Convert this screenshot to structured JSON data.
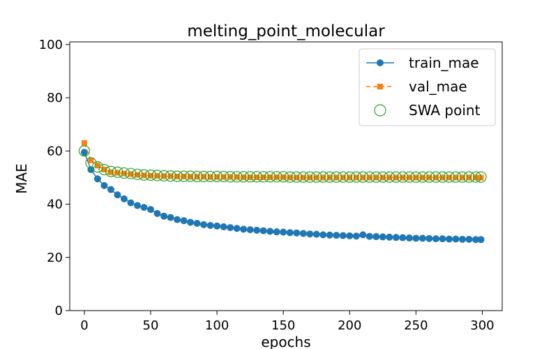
{
  "chart_data": {
    "type": "line",
    "title": "melting_point_molecular",
    "xlabel": "epochs",
    "ylabel": "MAE",
    "xlim": [
      -11,
      315
    ],
    "ylim": [
      0,
      101
    ],
    "xticks": [
      0,
      50,
      100,
      150,
      200,
      250,
      300
    ],
    "yticks": [
      0,
      20,
      40,
      60,
      80,
      100
    ],
    "legend_position": "upper-right",
    "x": [
      0,
      5,
      10,
      15,
      20,
      25,
      30,
      35,
      40,
      45,
      50,
      55,
      60,
      65,
      70,
      75,
      80,
      85,
      90,
      95,
      100,
      105,
      110,
      115,
      120,
      125,
      130,
      135,
      140,
      145,
      150,
      155,
      160,
      165,
      170,
      175,
      180,
      185,
      190,
      195,
      200,
      205,
      210,
      215,
      220,
      225,
      230,
      235,
      240,
      245,
      250,
      255,
      260,
      265,
      270,
      275,
      280,
      285,
      290,
      295,
      299
    ],
    "series": [
      {
        "name": "train_mae",
        "color": "#1f77b4",
        "marker": "circle",
        "line_style": "solid",
        "values": [
          59.5,
          53.0,
          49.5,
          47.0,
          45.5,
          43.5,
          42.0,
          40.5,
          39.5,
          38.8,
          38.0,
          36.5,
          35.5,
          35.0,
          34.2,
          33.8,
          33.2,
          32.8,
          32.3,
          32.0,
          31.8,
          31.5,
          31.2,
          30.9,
          30.6,
          30.4,
          30.2,
          30.0,
          29.8,
          29.6,
          29.5,
          29.3,
          29.2,
          29.0,
          28.8,
          28.7,
          28.5,
          28.4,
          28.3,
          28.2,
          28.1,
          28.0,
          28.5,
          27.9,
          27.8,
          27.7,
          27.6,
          27.5,
          27.4,
          27.3,
          27.2,
          27.2,
          27.1,
          27.0,
          27.0,
          26.9,
          26.9,
          26.8,
          26.8,
          26.7,
          26.7
        ]
      },
      {
        "name": "val_mae",
        "color": "#ff7f0e",
        "marker": "square",
        "line_style": "dashed",
        "values": [
          63.0,
          56.5,
          54.5,
          53.0,
          52.0,
          51.8,
          51.5,
          51.3,
          51.0,
          50.8,
          50.7,
          50.6,
          50.5,
          50.5,
          50.4,
          50.4,
          50.3,
          50.3,
          50.3,
          50.2,
          50.2,
          50.2,
          50.2,
          50.2,
          50.1,
          50.1,
          50.1,
          50.1,
          50.1,
          50.1,
          50.1,
          50.0,
          50.0,
          50.0,
          50.0,
          50.0,
          50.0,
          50.0,
          50.0,
          50.0,
          50.0,
          50.0,
          50.0,
          50.0,
          50.0,
          50.0,
          50.0,
          50.0,
          50.0,
          50.0,
          50.0,
          50.0,
          50.0,
          50.0,
          50.0,
          50.0,
          50.0,
          50.0,
          50.0,
          50.0,
          50.0
        ]
      },
      {
        "name": "SWA point",
        "color": "#2ca02c",
        "marker": "open-circle",
        "line_style": "none",
        "values": [
          60.0,
          55.5,
          54.0,
          53.0,
          52.3,
          52.0,
          51.7,
          51.5,
          51.2,
          51.0,
          50.9,
          50.8,
          50.7,
          50.6,
          50.5,
          50.5,
          50.5,
          50.4,
          50.4,
          50.4,
          50.4,
          50.4,
          50.3,
          50.3,
          50.3,
          50.3,
          50.3,
          50.3,
          50.3,
          50.3,
          50.3,
          50.2,
          50.2,
          50.2,
          50.2,
          50.2,
          50.2,
          50.2,
          50.2,
          50.2,
          50.2,
          50.2,
          50.2,
          50.2,
          50.2,
          50.2,
          50.2,
          50.2,
          50.2,
          50.2,
          50.2,
          50.2,
          50.2,
          50.2,
          50.2,
          50.2,
          50.2,
          50.2,
          50.2,
          50.2,
          50.2
        ]
      }
    ]
  }
}
